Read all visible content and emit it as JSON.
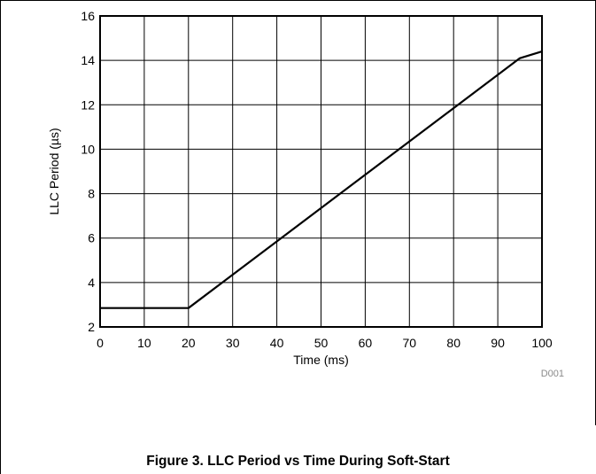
{
  "chart_data": {
    "type": "line",
    "xlabel": "Time (ms)",
    "ylabel": "LLC Period (µs)",
    "xlim": [
      0,
      100
    ],
    "ylim": [
      2,
      16
    ],
    "xticks": [
      0,
      10,
      20,
      30,
      40,
      50,
      60,
      70,
      80,
      90,
      100
    ],
    "yticks": [
      2,
      4,
      6,
      8,
      10,
      12,
      14,
      16
    ],
    "grid": true,
    "series": [
      {
        "x": [
          0,
          20,
          95,
          100
        ],
        "y": [
          2.85,
          2.85,
          14.1,
          14.4
        ]
      }
    ]
  },
  "figure_code": "D001",
  "caption": "Figure 3. LLC Period vs Time During Soft-Start",
  "colors": {
    "line": "#000000",
    "grid": "#000000",
    "code_label": "#8a8a8a"
  }
}
